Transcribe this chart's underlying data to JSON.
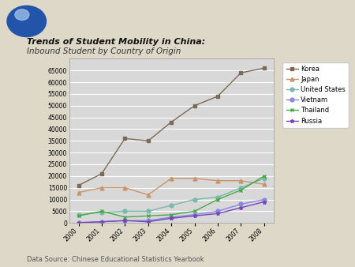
{
  "years": [
    2000,
    2001,
    2002,
    2003,
    2004,
    2005,
    2006,
    2007,
    2008
  ],
  "series": {
    "Korea": [
      16000,
      21000,
      36000,
      35000,
      43000,
      50000,
      54000,
      64000,
      66000
    ],
    "Japan": [
      13000,
      15000,
      15000,
      12000,
      19000,
      19000,
      18000,
      18000,
      16500
    ],
    "United States": [
      3500,
      4500,
      5000,
      5000,
      7500,
      10000,
      11000,
      15000,
      19000
    ],
    "Vietnam": [
      200,
      500,
      1000,
      1000,
      2500,
      3500,
      5000,
      8000,
      10000
    ],
    "Thailand": [
      3000,
      5000,
      2500,
      3000,
      3500,
      5000,
      10000,
      14000,
      20000
    ],
    "Russia": [
      100,
      500,
      1000,
      500,
      2000,
      3000,
      4000,
      6500,
      9000
    ]
  },
  "colors": {
    "Korea": "#7b6a5a",
    "Japan": "#c8956a",
    "United States": "#7ab8aa",
    "Vietnam": "#8888dd",
    "Thailand": "#44aa44",
    "Russia": "#7744bb"
  },
  "markers": {
    "Korea": "s",
    "Japan": "^",
    "United States": "o",
    "Vietnam": "o",
    "Thailand": "x",
    "Russia": "*"
  },
  "title1": "Trends of Student Mobility in China:",
  "title2": "Inbound Student by Country of Origin",
  "data_source": "Data Source: Chinese Educational Statistics Yearbook",
  "ylim": [
    0,
    70000
  ],
  "yticks": [
    0,
    5000,
    10000,
    15000,
    20000,
    25000,
    30000,
    35000,
    40000,
    45000,
    50000,
    55000,
    60000,
    65000
  ],
  "header_bg": "#c8bc9a",
  "plot_bg_color": "#d8d8d8",
  "chart_bg": "#e8e4d8",
  "outer_bg": "#ddd8c8"
}
